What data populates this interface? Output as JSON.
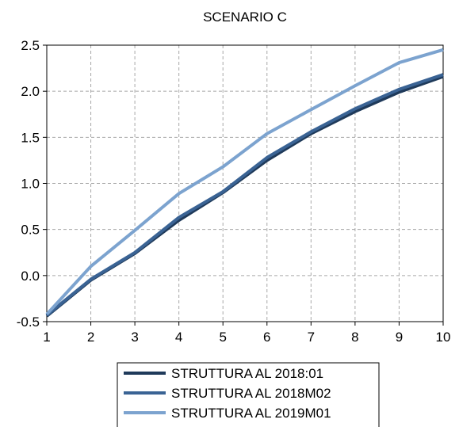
{
  "chart_data": {
    "type": "line",
    "title": "SCENARIO C",
    "xlabel": "",
    "ylabel": "",
    "x": [
      1,
      2,
      3,
      4,
      5,
      6,
      7,
      8,
      9,
      10
    ],
    "xlim": [
      1,
      10
    ],
    "ylim": [
      -0.5,
      2.5
    ],
    "yticks": [
      -0.5,
      0.0,
      0.5,
      1.0,
      1.5,
      2.0,
      2.5
    ],
    "ytick_labels": [
      "-0.5",
      "0.0",
      "0.5",
      "1.0",
      "1.5",
      "2.0",
      "2.5"
    ],
    "xtick_labels": [
      "1",
      "2",
      "3",
      "4",
      "5",
      "6",
      "7",
      "8",
      "9",
      "10"
    ],
    "grid": true,
    "legend_position": "bottom",
    "series": [
      {
        "name": "STRUTTURA AL 2018:01",
        "color": "#1f3a5a",
        "values": [
          -0.44,
          -0.05,
          0.24,
          0.6,
          0.9,
          1.25,
          1.54,
          1.78,
          1.99,
          2.16
        ]
      },
      {
        "name": "STRUTTURA AL 2018M02",
        "color": "#3a6394",
        "values": [
          -0.43,
          -0.04,
          0.25,
          0.63,
          0.91,
          1.28,
          1.56,
          1.81,
          2.02,
          2.18
        ]
      },
      {
        "name": "STRUTTURA AL 2019M01",
        "color": "#7ca3cf",
        "values": [
          -0.42,
          0.1,
          0.49,
          0.89,
          1.18,
          1.54,
          1.8,
          2.06,
          2.31,
          2.45
        ]
      }
    ]
  }
}
